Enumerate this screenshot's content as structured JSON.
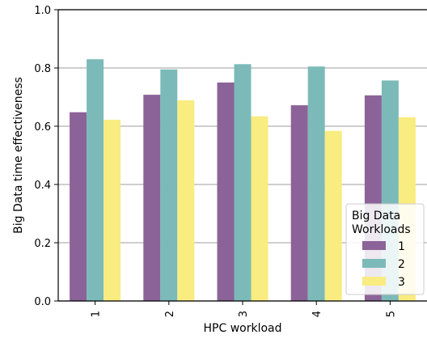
{
  "chart_data": {
    "type": "bar",
    "categories": [
      "1",
      "2",
      "3",
      "4",
      "5"
    ],
    "series": [
      {
        "name": "1",
        "values": [
          0.648,
          0.708,
          0.75,
          0.672,
          0.706
        ],
        "color": "#8c6398"
      },
      {
        "name": "2",
        "values": [
          0.83,
          0.795,
          0.813,
          0.805,
          0.757
        ],
        "color": "#7bbab8"
      },
      {
        "name": "3",
        "values": [
          0.622,
          0.689,
          0.634,
          0.584,
          0.631
        ],
        "color": "#f9ec80"
      }
    ],
    "xlabel": "HPC workload",
    "ylabel": "Big Data time effectiveness",
    "ylim": [
      0,
      1.0
    ],
    "yticks": [
      "0.0",
      "0.2",
      "0.4",
      "0.6",
      "0.8",
      "1.0"
    ],
    "grid": "horizontal",
    "legend": {
      "title_line1": "Big Data",
      "title_line2": "Workloads",
      "placement": "lower-right"
    }
  }
}
